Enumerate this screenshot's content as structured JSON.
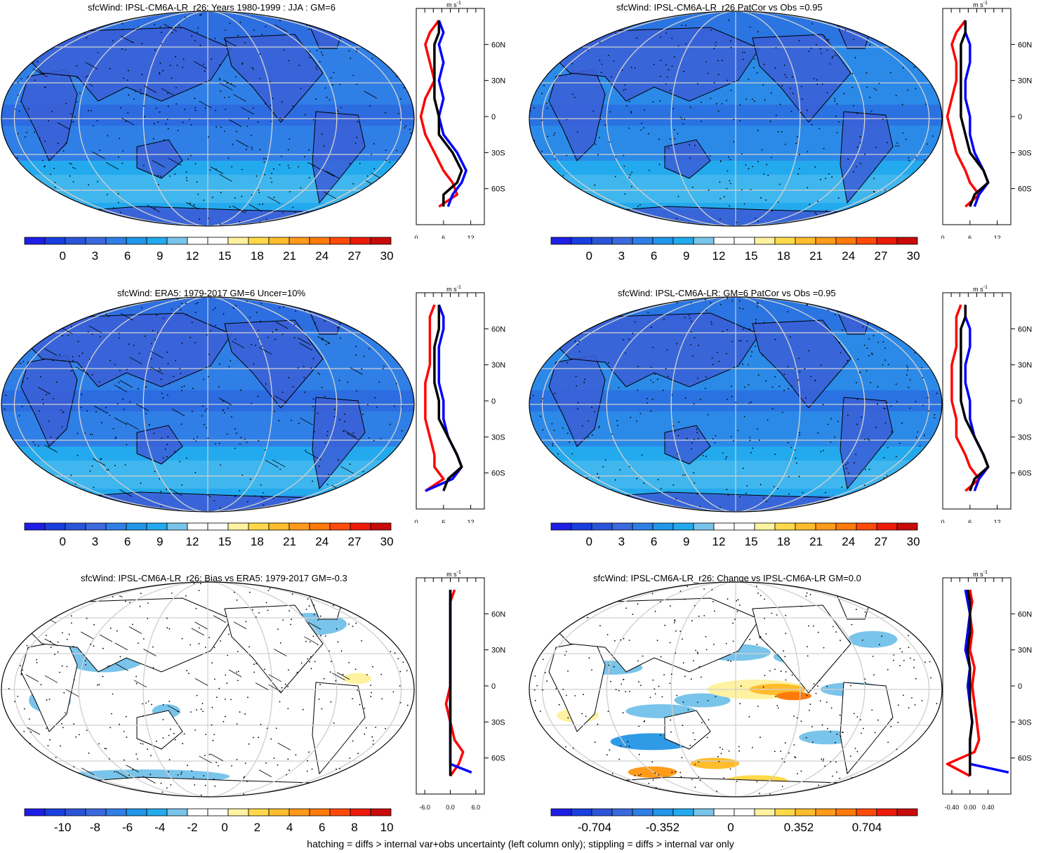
{
  "footer": "hatching = diffs > internal var+obs uncertainty (left column only); stippling = diffs > internal var only",
  "lat_labels": [
    "60N",
    "30N",
    "0",
    "30S",
    "60S"
  ],
  "lat_values": [
    60,
    30,
    0,
    -30,
    -60
  ],
  "units": {
    "main": "m s",
    "exp": "-1"
  },
  "colors": {
    "abs": [
      "#1e1ee6",
      "#1a3fe0",
      "#2b55d9",
      "#3b69de",
      "#2f7fe6",
      "#2196ea",
      "#23aaee",
      "#79c4ea",
      "#ffffff",
      "#ffffff",
      "#fff2a0",
      "#ffd94a",
      "#ffbc2c",
      "#ff9a1a",
      "#ff7a0a",
      "#ff4a0a",
      "#ee1a0a",
      "#c80a0a"
    ],
    "line_red": "#ff0000",
    "line_blue": "#0000ff",
    "line_black": "#000000"
  },
  "panels": [
    {
      "title": "sfcWind: IPSL-CM6A-LR_r26: Years 1980-1999 : JJA : GM=6",
      "cbar_labels": [
        "0",
        "3",
        "6",
        "9",
        "12",
        "15",
        "18",
        "21",
        "24",
        "27",
        "30"
      ],
      "prof_ticks": [
        "0",
        "6",
        "12"
      ],
      "prof_tick_values": [
        0,
        6,
        12
      ],
      "prof_range": [
        0,
        15
      ],
      "base_fill": "#2f7fe6",
      "land_fill": "#3b5fd6",
      "lines": {
        "red": [
          [
            80,
            5
          ],
          [
            70,
            3
          ],
          [
            60,
            2
          ],
          [
            45,
            3
          ],
          [
            30,
            4
          ],
          [
            15,
            2
          ],
          [
            0,
            1
          ],
          [
            -15,
            2
          ],
          [
            -30,
            4
          ],
          [
            -45,
            6
          ],
          [
            -55,
            8
          ],
          [
            -65,
            9
          ],
          [
            -75,
            5
          ]
        ],
        "blue": [
          [
            80,
            5
          ],
          [
            70,
            6
          ],
          [
            60,
            5
          ],
          [
            45,
            6
          ],
          [
            30,
            5
          ],
          [
            15,
            6
          ],
          [
            0,
            5
          ],
          [
            -15,
            6
          ],
          [
            -30,
            9
          ],
          [
            -45,
            11
          ],
          [
            -55,
            10
          ],
          [
            -65,
            8
          ],
          [
            -75,
            7
          ]
        ],
        "black": [
          [
            80,
            5
          ],
          [
            70,
            5
          ],
          [
            60,
            4
          ],
          [
            45,
            4
          ],
          [
            30,
            4
          ],
          [
            15,
            4
          ],
          [
            0,
            5
          ],
          [
            -15,
            5
          ],
          [
            -30,
            8
          ],
          [
            -45,
            10
          ],
          [
            -55,
            9
          ],
          [
            -65,
            6
          ],
          [
            -75,
            6
          ]
        ]
      }
    },
    {
      "title": "sfcWind: IPSL-CM6A-LR_r26 PatCor vs Obs =0.95",
      "cbar_labels": [
        "0",
        "3",
        "6",
        "9",
        "12",
        "15",
        "18",
        "21",
        "24",
        "27",
        "30"
      ],
      "prof_ticks": [
        "0",
        "6",
        "12"
      ],
      "prof_tick_values": [
        0,
        6,
        12
      ],
      "prof_range": [
        0,
        15
      ],
      "base_fill": "#2b8ae8",
      "land_fill": "#3b5fd6",
      "lines": {
        "red": [
          [
            80,
            5
          ],
          [
            70,
            3
          ],
          [
            60,
            2
          ],
          [
            45,
            3
          ],
          [
            30,
            3
          ],
          [
            15,
            2
          ],
          [
            0,
            1
          ],
          [
            -15,
            2
          ],
          [
            -30,
            3
          ],
          [
            -45,
            5
          ],
          [
            -55,
            6
          ],
          [
            -65,
            8
          ],
          [
            -75,
            5
          ]
        ],
        "blue": [
          [
            80,
            5
          ],
          [
            70,
            5
          ],
          [
            60,
            6
          ],
          [
            45,
            6
          ],
          [
            30,
            5
          ],
          [
            15,
            5
          ],
          [
            0,
            6
          ],
          [
            -15,
            6
          ],
          [
            -30,
            7
          ],
          [
            -45,
            9
          ],
          [
            -55,
            10
          ],
          [
            -65,
            8
          ],
          [
            -75,
            7
          ]
        ],
        "black": [
          [
            80,
            5
          ],
          [
            70,
            5
          ],
          [
            60,
            4
          ],
          [
            45,
            4
          ],
          [
            30,
            4
          ],
          [
            15,
            4
          ],
          [
            0,
            4
          ],
          [
            -15,
            5
          ],
          [
            -30,
            6
          ],
          [
            -45,
            9
          ],
          [
            -55,
            10
          ],
          [
            -65,
            7
          ],
          [
            -75,
            6
          ]
        ]
      }
    },
    {
      "title": "sfcWind: ERA5: 1979-2017 GM=6 Uncer=10%",
      "cbar_labels": [
        "0",
        "3",
        "6",
        "9",
        "12",
        "15",
        "18",
        "21",
        "24",
        "27",
        "30"
      ],
      "prof_ticks": [
        "0",
        "6",
        "12"
      ],
      "prof_tick_values": [
        0,
        6,
        12
      ],
      "prof_range": [
        0,
        15
      ],
      "base_fill": "#2f7fe6",
      "land_fill": "#3b5fd6",
      "lines": {
        "red": [
          [
            80,
            4
          ],
          [
            70,
            3
          ],
          [
            60,
            3
          ],
          [
            45,
            3
          ],
          [
            30,
            3
          ],
          [
            15,
            2
          ],
          [
            0,
            2
          ],
          [
            -15,
            2
          ],
          [
            -30,
            3
          ],
          [
            -45,
            4
          ],
          [
            -55,
            4
          ],
          [
            -65,
            6
          ],
          [
            -75,
            2
          ]
        ],
        "blue": [
          [
            80,
            5
          ],
          [
            70,
            6
          ],
          [
            60,
            6
          ],
          [
            45,
            5
          ],
          [
            30,
            5
          ],
          [
            15,
            5
          ],
          [
            0,
            6
          ],
          [
            -15,
            6
          ],
          [
            -30,
            7
          ],
          [
            -45,
            9
          ],
          [
            -55,
            10
          ],
          [
            -65,
            8
          ],
          [
            -75,
            2
          ]
        ],
        "black": [
          [
            80,
            5
          ],
          [
            70,
            5
          ],
          [
            60,
            5
          ],
          [
            45,
            4
          ],
          [
            30,
            4
          ],
          [
            15,
            4
          ],
          [
            0,
            5
          ],
          [
            -15,
            5
          ],
          [
            -30,
            7
          ],
          [
            -45,
            9
          ],
          [
            -55,
            10
          ],
          [
            -65,
            7
          ],
          [
            -75,
            6
          ]
        ]
      }
    },
    {
      "title": "sfcWind: IPSL-CM6A-LR: GM=6 PatCor vs Obs =0.95",
      "cbar_labels": [
        "0",
        "3",
        "6",
        "9",
        "12",
        "15",
        "18",
        "21",
        "24",
        "27",
        "30"
      ],
      "prof_ticks": [
        "0",
        "6",
        "12"
      ],
      "prof_tick_values": [
        0,
        6,
        12
      ],
      "prof_range": [
        0,
        15
      ],
      "base_fill": "#2b8ae8",
      "land_fill": "#3b5fd6",
      "lines": {
        "red": [
          [
            80,
            4
          ],
          [
            70,
            3
          ],
          [
            60,
            3
          ],
          [
            45,
            3
          ],
          [
            30,
            2
          ],
          [
            15,
            2
          ],
          [
            0,
            2
          ],
          [
            -15,
            3
          ],
          [
            -30,
            3
          ],
          [
            -45,
            5
          ],
          [
            -55,
            6
          ],
          [
            -65,
            8
          ],
          [
            -75,
            5
          ]
        ],
        "blue": [
          [
            80,
            5
          ],
          [
            70,
            5
          ],
          [
            60,
            6
          ],
          [
            45,
            6
          ],
          [
            30,
            5
          ],
          [
            15,
            5
          ],
          [
            0,
            6
          ],
          [
            -15,
            6
          ],
          [
            -30,
            7
          ],
          [
            -45,
            9
          ],
          [
            -55,
            10
          ],
          [
            -65,
            8
          ],
          [
            -75,
            7
          ]
        ],
        "black": [
          [
            80,
            5
          ],
          [
            70,
            5
          ],
          [
            60,
            4
          ],
          [
            45,
            4
          ],
          [
            30,
            4
          ],
          [
            15,
            4
          ],
          [
            0,
            4
          ],
          [
            -15,
            5
          ],
          [
            -30,
            7
          ],
          [
            -45,
            9
          ],
          [
            -55,
            10
          ],
          [
            -65,
            7
          ],
          [
            -75,
            6
          ]
        ]
      }
    },
    {
      "title": "sfcWind: IPSL-CM6A-LR_r26: Bias vs ERA5: 1979-2017 GM=-0.3",
      "cbar_labels": [
        "-10",
        "-8",
        "-6",
        "-4",
        "-2",
        "0",
        "2",
        "4",
        "6",
        "8",
        "10"
      ],
      "prof_ticks": [
        "-6.0",
        "0.0",
        "6.0"
      ],
      "prof_tick_values": [
        -6,
        0,
        6
      ],
      "prof_range": [
        -8,
        8
      ],
      "base_fill": "#ffffff",
      "land_fill": "#ffffff",
      "lines": {
        "red": [
          [
            80,
            1
          ],
          [
            70,
            0
          ],
          [
            60,
            0
          ],
          [
            45,
            0
          ],
          [
            30,
            0
          ],
          [
            15,
            0
          ],
          [
            0,
            0
          ],
          [
            -15,
            -1
          ],
          [
            -30,
            0
          ],
          [
            -45,
            1
          ],
          [
            -55,
            3
          ],
          [
            -65,
            2
          ],
          [
            -75,
            0
          ]
        ],
        "blue": [
          [
            80,
            0
          ],
          [
            70,
            0
          ],
          [
            60,
            0
          ],
          [
            45,
            0
          ],
          [
            30,
            0
          ],
          [
            15,
            0
          ],
          [
            0,
            0
          ],
          [
            -15,
            0
          ],
          [
            -30,
            0
          ],
          [
            -45,
            0
          ],
          [
            -55,
            0
          ],
          [
            -65,
            0
          ],
          [
            -72,
            5
          ]
        ],
        "black": [
          [
            80,
            0
          ],
          [
            70,
            0
          ],
          [
            60,
            0
          ],
          [
            45,
            0
          ],
          [
            30,
            0
          ],
          [
            15,
            0
          ],
          [
            0,
            0
          ],
          [
            -15,
            0
          ],
          [
            -30,
            0
          ],
          [
            -45,
            0
          ],
          [
            -55,
            0
          ],
          [
            -65,
            0
          ],
          [
            -75,
            0
          ]
        ]
      }
    },
    {
      "title": "sfcWind: IPSL-CM6A-LR_r26: Change vs IPSL-CM6A-LR GM=0.0",
      "cbar_labels": [
        "-0.704",
        "-0.352",
        "0",
        "0.352",
        "0.704"
      ],
      "prof_ticks": [
        "-0.40",
        "0.00",
        "0.40"
      ],
      "prof_tick_values": [
        -0.4,
        0,
        0.4
      ],
      "prof_range": [
        -0.6,
        0.9
      ],
      "base_fill": "#ffffff",
      "land_fill": "#ffffff",
      "lines": {
        "red": [
          [
            80,
            0
          ],
          [
            70,
            0.05
          ],
          [
            60,
            0
          ],
          [
            45,
            0.05
          ],
          [
            30,
            0
          ],
          [
            15,
            0.1
          ],
          [
            0,
            0.05
          ],
          [
            -15,
            0.1
          ],
          [
            -30,
            0.15
          ],
          [
            -45,
            0.2
          ],
          [
            -55,
            0.1
          ],
          [
            -65,
            -0.5
          ],
          [
            -75,
            0
          ]
        ],
        "blue": [
          [
            80,
            -0.1
          ],
          [
            70,
            -0.05
          ],
          [
            60,
            0
          ],
          [
            45,
            -0.05
          ],
          [
            30,
            -0.1
          ],
          [
            15,
            0
          ],
          [
            0,
            -0.05
          ],
          [
            -15,
            0
          ],
          [
            -30,
            0.05
          ],
          [
            -45,
            0
          ],
          [
            -55,
            0
          ],
          [
            -65,
            0
          ],
          [
            -72,
            0.85
          ]
        ],
        "black": [
          [
            80,
            -0.05
          ],
          [
            70,
            0
          ],
          [
            60,
            0
          ],
          [
            45,
            0
          ],
          [
            30,
            -0.05
          ],
          [
            15,
            0
          ],
          [
            0,
            0
          ],
          [
            -15,
            0
          ],
          [
            -30,
            0.05
          ],
          [
            -45,
            0
          ],
          [
            -55,
            0
          ],
          [
            -65,
            0
          ],
          [
            -75,
            0
          ]
        ]
      }
    }
  ]
}
